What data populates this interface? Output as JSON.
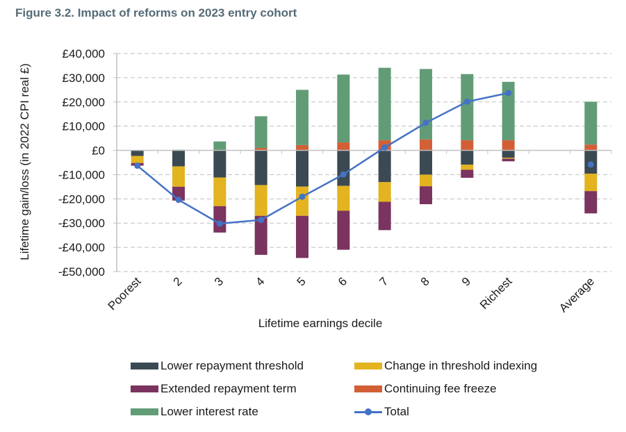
{
  "title": "Figure 3.2. Impact of reforms on 2023 entry cohort",
  "chart_data": {
    "type": "bar",
    "subtype": "stacked bar with line overlay",
    "title": "Figure 3.2. Impact of reforms on 2023 entry cohort",
    "xlabel": "Lifetime earnings decile",
    "ylabel": "Lifetime gain/loss (in 2022 CPI real £)",
    "ylim": [
      -50000,
      40000
    ],
    "yticks": [
      40000,
      30000,
      20000,
      10000,
      0,
      -10000,
      -20000,
      -30000,
      -40000,
      -50000
    ],
    "ytick_labels": [
      "£40,000",
      "£30,000",
      "£20,000",
      "£10,000",
      "£0",
      "-£10,000",
      "-£20,000",
      "-£30,000",
      "-£40,000",
      "-£50,000"
    ],
    "categories": [
      "Poorest",
      "2",
      "3",
      "4",
      "5",
      "6",
      "7",
      "8",
      "9",
      "Richest",
      "",
      "Average"
    ],
    "grid": "horizontal dashed",
    "legend_position": "bottom",
    "series": [
      {
        "name": "Lower repayment threshold",
        "kind": "bar",
        "color": "#3b4a52",
        "values": [
          -2300,
          -6600,
          -11200,
          -14300,
          -14900,
          -14600,
          -13100,
          -10000,
          -5900,
          -3000,
          null,
          -9600
        ]
      },
      {
        "name": "Change in threshold indexing",
        "kind": "bar",
        "color": "#e3b320",
        "values": [
          -2900,
          -8400,
          -11800,
          -12700,
          -12100,
          -10300,
          -8100,
          -4800,
          -2100,
          -400,
          null,
          -7200
        ]
      },
      {
        "name": "Extended repayment term",
        "kind": "bar",
        "color": "#7b3360",
        "values": [
          -1100,
          -5700,
          -10900,
          -16100,
          -17400,
          -16100,
          -11700,
          -7400,
          -3300,
          -1100,
          null,
          -9200
        ]
      },
      {
        "name": "Continuing fee freeze",
        "kind": "bar",
        "color": "#d35f37",
        "values": [
          0,
          0,
          0,
          1000,
          2200,
          3300,
          4200,
          4500,
          4200,
          4200,
          null,
          2400
        ]
      },
      {
        "name": "Lower interest rate",
        "kind": "bar",
        "color": "#629c76",
        "values": [
          0,
          300,
          3700,
          13100,
          22800,
          28000,
          29900,
          29100,
          27300,
          24100,
          null,
          17700
        ]
      },
      {
        "name": "Total",
        "kind": "line",
        "color": "#4472c4",
        "values": [
          -6300,
          -20400,
          -30200,
          -28700,
          -19100,
          -9900,
          1200,
          11400,
          20100,
          23700,
          null,
          -5800
        ]
      }
    ]
  },
  "legend": [
    {
      "label": "Lower repayment threshold",
      "color": "#3b4a52",
      "kind": "bar"
    },
    {
      "label": "Change in threshold indexing",
      "color": "#e3b320",
      "kind": "bar"
    },
    {
      "label": "Extended repayment term",
      "color": "#7b3360",
      "kind": "bar"
    },
    {
      "label": "Continuing fee freeze",
      "color": "#d35f37",
      "kind": "bar"
    },
    {
      "label": "Lower interest rate",
      "color": "#629c76",
      "kind": "bar"
    },
    {
      "label": "Total",
      "color": "#4472c4",
      "kind": "line"
    }
  ]
}
